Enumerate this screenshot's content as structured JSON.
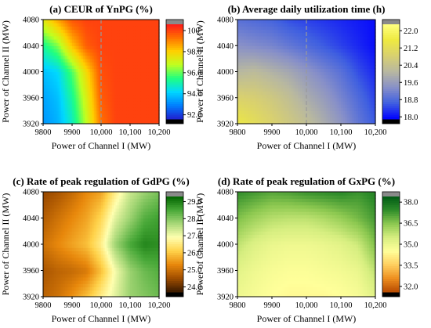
{
  "chart_data": [
    {
      "type": "heatmap",
      "id": "a",
      "title": "(a) CEUR of YnPG (%)",
      "xlabel": "Power of Channel I (MW)",
      "ylabel": "Power of Channel II (MW)",
      "x": [
        9800,
        9850,
        9900,
        9950,
        10000,
        10050,
        10100,
        10150,
        10200
      ],
      "y": [
        3920,
        3960,
        4000,
        4040,
        4080
      ],
      "xticks": [
        "9800",
        "9900",
        "10,000",
        "10,100",
        "10,200"
      ],
      "yticks": [
        "3920",
        "3960",
        "4000",
        "4040",
        "4080"
      ],
      "z": [
        [
          93.2,
          93.6,
          94.8,
          96.8,
          99.3,
          100,
          100,
          100,
          100
        ],
        [
          93.4,
          93.8,
          95.2,
          97.2,
          99.6,
          100,
          100,
          100,
          100
        ],
        [
          93.8,
          94.2,
          95.8,
          97.8,
          99.8,
          100,
          100,
          100,
          100
        ],
        [
          95.2,
          96.2,
          98.2,
          99.6,
          100,
          100,
          100,
          100,
          100
        ],
        [
          97.4,
          98.6,
          99.7,
          100,
          100,
          100,
          100,
          100,
          100
        ]
      ],
      "colorbar": {
        "ticks": [
          "100",
          "98.0",
          "96.0",
          "94.0",
          "92.0"
        ],
        "min": 91.6,
        "max": 100.6
      },
      "palette": "rainbow",
      "dashed_x": 10000
    },
    {
      "type": "heatmap",
      "id": "b",
      "title": "(b) Average daily utilization time (h)",
      "xlabel": "Power of Channel I (MW)",
      "ylabel": "Power of Channel II (MW)",
      "x": [
        9800,
        9850,
        9900,
        9950,
        10000,
        10050,
        10100,
        10150,
        10200
      ],
      "y": [
        3920,
        3960,
        4000,
        4040,
        4080
      ],
      "xticks": [
        "9800",
        "9900",
        "10,000",
        "10,100",
        "10,200"
      ],
      "yticks": [
        "3920",
        "3960",
        "4000",
        "4040",
        "4080"
      ],
      "z": [
        [
          21.5,
          21.2,
          20.9,
          20.6,
          20.3,
          19.9,
          19.5,
          19.0,
          18.6
        ],
        [
          20.9,
          20.8,
          20.6,
          20.3,
          19.9,
          19.6,
          19.2,
          18.8,
          18.4
        ],
        [
          20.1,
          20.2,
          20.0,
          19.8,
          19.5,
          19.2,
          18.9,
          18.5,
          18.2
        ],
        [
          19.4,
          19.3,
          19.2,
          19.0,
          18.8,
          18.6,
          18.4,
          18.2,
          18.0
        ],
        [
          18.9,
          18.8,
          18.7,
          18.5,
          18.4,
          18.3,
          18.2,
          18.1,
          18.0
        ]
      ],
      "colorbar": {
        "ticks": [
          "22.0",
          "21.2",
          "20.4",
          "19.6",
          "18.8",
          "18.0"
        ],
        "min": 17.9,
        "max": 22.3
      },
      "palette": "blue-yellow",
      "dashed_x": 10000
    },
    {
      "type": "heatmap",
      "id": "c",
      "title": "(c) Rate of peak regulation of GdPG (%)",
      "xlabel": "Power of Channel I (MW)",
      "ylabel": "Power of Channel II (MW)",
      "x": [
        9800,
        9850,
        9900,
        9950,
        10000,
        10050,
        10100,
        10150,
        10200
      ],
      "y": [
        3920,
        3960,
        4000,
        4040,
        4080
      ],
      "xticks": [
        "9800",
        "9900",
        "10,000",
        "10,100",
        "10,200"
      ],
      "yticks": [
        "3920",
        "3960",
        "4000",
        "4040",
        "4080"
      ],
      "z": [
        [
          24.8,
          25.0,
          25.4,
          25.9,
          26.6,
          27.2,
          27.8,
          28.0,
          28.2
        ],
        [
          24.6,
          24.8,
          24.9,
          25.1,
          25.9,
          27.0,
          27.8,
          28.2,
          28.4
        ],
        [
          25.0,
          25.3,
          25.6,
          25.9,
          26.6,
          27.8,
          28.5,
          28.9,
          28.8
        ],
        [
          24.7,
          25.0,
          25.3,
          25.6,
          26.2,
          27.2,
          27.8,
          28.4,
          28.6
        ],
        [
          24.4,
          24.6,
          24.9,
          25.3,
          25.6,
          26.6,
          27.4,
          27.8,
          28.1
        ]
      ],
      "colorbar": {
        "ticks": [
          "29.0",
          "28.0",
          "27.0",
          "26.0",
          "25.0",
          "24.0"
        ],
        "min": 23.7,
        "max": 29.3
      },
      "palette": "brown-green"
    },
    {
      "type": "heatmap",
      "id": "d",
      "title": "(d) Rate of peak regulation of GxPG (%)",
      "xlabel": "Power of Channel I (MW)",
      "ylabel": "Power of Channel II (MW)",
      "x": [
        9800,
        9850,
        9900,
        9950,
        10000,
        10050,
        10100,
        10150,
        10200
      ],
      "y": [
        3920,
        3960,
        4000,
        4040,
        4080
      ],
      "xticks": [
        "9800",
        "9900",
        "10,000",
        "10,100",
        "10,200"
      ],
      "yticks": [
        "3920",
        "3960",
        "4000",
        "4040",
        "4080"
      ],
      "z": [
        [
          34.9,
          34.7,
          34.5,
          34.4,
          34.4,
          34.4,
          34.5,
          34.7,
          35.2
        ],
        [
          35.2,
          34.9,
          34.7,
          34.6,
          34.6,
          34.7,
          34.8,
          35.0,
          35.8
        ],
        [
          35.8,
          35.3,
          35.0,
          34.9,
          34.9,
          35.0,
          35.2,
          35.6,
          36.6
        ],
        [
          36.6,
          36.2,
          35.9,
          35.8,
          35.8,
          36.0,
          36.3,
          36.7,
          37.2
        ],
        [
          37.4,
          37.2,
          37.0,
          37.1,
          37.3,
          37.4,
          37.5,
          37.3,
          37.6
        ]
      ],
      "colorbar": {
        "ticks": [
          "38.0",
          "36.5",
          "35.0",
          "33.5",
          "32.0"
        ],
        "min": 31.6,
        "max": 38.4
      },
      "palette": "orange-green"
    }
  ]
}
